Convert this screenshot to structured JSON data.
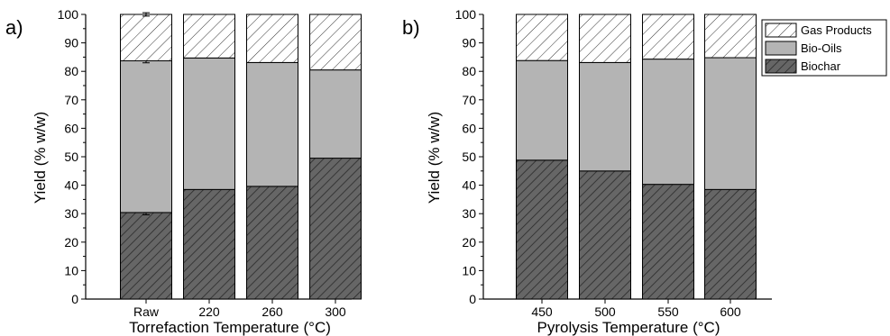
{
  "chart_data": [
    {
      "type": "bar",
      "stacked": true,
      "panel_label": "a)",
      "categories": [
        "Raw",
        "220",
        "260",
        "300"
      ],
      "series": [
        {
          "name": "Biochar",
          "values": [
            30.4,
            38.5,
            39.6,
            49.5
          ],
          "error": [
            0.8,
            null,
            null,
            null
          ],
          "color": "#666666",
          "pattern": "dense-diagonal"
        },
        {
          "name": "Bio-Oils",
          "values": [
            53.3,
            46.2,
            43.5,
            31.0
          ],
          "error": [
            0.7,
            null,
            null,
            null
          ],
          "color": "#b4b4b4",
          "pattern": "none"
        },
        {
          "name": "Gas Products",
          "values": [
            16.3,
            15.3,
            16.9,
            19.5
          ],
          "error": [
            0.6,
            null,
            null,
            null
          ],
          "color": "#ffffff",
          "pattern": "sparse-diagonal"
        }
      ],
      "xlabel": "Torrefaction Temperature (°C)",
      "ylabel": "Yield (% w/w)",
      "ylim": [
        0,
        100
      ],
      "yticks": [
        "0",
        "10",
        "20",
        "30",
        "40",
        "50",
        "60",
        "70",
        "80",
        "90",
        "100"
      ],
      "grid": false,
      "legend": "none"
    },
    {
      "type": "bar",
      "stacked": true,
      "panel_label": "b)",
      "categories": [
        "450",
        "500",
        "550",
        "600"
      ],
      "series": [
        {
          "name": "Biochar",
          "values": [
            48.8,
            45.0,
            40.3,
            38.5
          ],
          "color": "#666666",
          "pattern": "dense-diagonal"
        },
        {
          "name": "Bio-Oils",
          "values": [
            35.0,
            38.1,
            44.0,
            46.3
          ],
          "color": "#b4b4b4",
          "pattern": "none"
        },
        {
          "name": "Gas Products",
          "values": [
            16.2,
            16.9,
            15.7,
            15.2
          ],
          "color": "#ffffff",
          "pattern": "sparse-diagonal"
        }
      ],
      "xlabel": "Pyrolysis Temperature (°C)",
      "ylabel": "Yield (% w/w)",
      "ylim": [
        0,
        100
      ],
      "yticks": [
        "0",
        "10",
        "20",
        "30",
        "40",
        "50",
        "60",
        "70",
        "80",
        "90",
        "100"
      ],
      "grid": false,
      "legend": "top-right"
    }
  ],
  "legend": {
    "items": [
      "Gas Products",
      "Bio-Oils",
      "Biochar"
    ]
  }
}
